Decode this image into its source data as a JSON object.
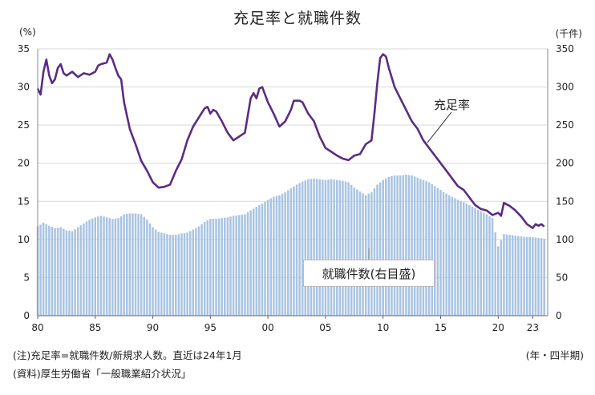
{
  "chart_data": {
    "type": "bar+line",
    "title": "充足率と就職件数",
    "left_axis": {
      "unit": "(%)",
      "ylim": [
        0,
        35
      ],
      "ticks": [
        "0",
        "5",
        "10",
        "15",
        "20",
        "25",
        "30",
        "35"
      ]
    },
    "right_axis": {
      "unit": "(千件)",
      "ylim": [
        0,
        350
      ],
      "ticks": [
        "0",
        "50",
        "100",
        "150",
        "200",
        "250",
        "300",
        "350"
      ]
    },
    "x_axis": {
      "unit": "(年・四半期)",
      "ticks": [
        {
          "year": 1980,
          "label": "80"
        },
        {
          "year": 1985,
          "label": "85"
        },
        {
          "year": 1990,
          "label": "90"
        },
        {
          "year": 1995,
          "label": "95"
        },
        {
          "year": 2000,
          "label": "00"
        },
        {
          "year": 2005,
          "label": "05"
        },
        {
          "year": 2010,
          "label": "10"
        },
        {
          "year": 2015,
          "label": "15"
        },
        {
          "year": 2020,
          "label": "20"
        },
        {
          "year": 2023,
          "label": "23"
        }
      ]
    },
    "series": [
      {
        "name": "就職件数(右目盛)",
        "kind": "bar",
        "axis": "right",
        "color": "#a9c4e2",
        "points": [
          [
            1980,
            117
          ],
          [
            1980.5,
            122
          ],
          [
            1981,
            118
          ],
          [
            1981.5,
            115
          ],
          [
            1982,
            116
          ],
          [
            1982.5,
            112
          ],
          [
            1983,
            111
          ],
          [
            1983.5,
            116
          ],
          [
            1984,
            121
          ],
          [
            1984.5,
            126
          ],
          [
            1985,
            129
          ],
          [
            1985.5,
            131
          ],
          [
            1986,
            129
          ],
          [
            1986.5,
            127
          ],
          [
            1987,
            128
          ],
          [
            1987.5,
            133
          ],
          [
            1988,
            134
          ],
          [
            1988.5,
            134
          ],
          [
            1989,
            133
          ],
          [
            1989.5,
            126
          ],
          [
            1990,
            116
          ],
          [
            1990.5,
            110
          ],
          [
            1991,
            108
          ],
          [
            1991.5,
            106
          ],
          [
            1992,
            106
          ],
          [
            1992.5,
            108
          ],
          [
            1993,
            109
          ],
          [
            1993.5,
            113
          ],
          [
            1994,
            117
          ],
          [
            1994.5,
            123
          ],
          [
            1995,
            127
          ],
          [
            1995.5,
            127
          ],
          [
            1996,
            128
          ],
          [
            1996.5,
            129
          ],
          [
            1997,
            131
          ],
          [
            1997.5,
            132
          ],
          [
            1998,
            133
          ],
          [
            1998.5,
            138
          ],
          [
            1999,
            143
          ],
          [
            1999.5,
            147
          ],
          [
            2000,
            152
          ],
          [
            2000.5,
            156
          ],
          [
            2001,
            158
          ],
          [
            2001.5,
            162
          ],
          [
            2002,
            167
          ],
          [
            2002.5,
            172
          ],
          [
            2003,
            176
          ],
          [
            2003.5,
            179
          ],
          [
            2004,
            180
          ],
          [
            2004.5,
            179
          ],
          [
            2005,
            178
          ],
          [
            2005.5,
            179
          ],
          [
            2006,
            178
          ],
          [
            2006.5,
            177
          ],
          [
            2007,
            175
          ],
          [
            2007.5,
            168
          ],
          [
            2008,
            163
          ],
          [
            2008.5,
            158
          ],
          [
            2009,
            162
          ],
          [
            2009.5,
            172
          ],
          [
            2010,
            178
          ],
          [
            2010.5,
            182
          ],
          [
            2011,
            184
          ],
          [
            2011.5,
            184
          ],
          [
            2012,
            185
          ],
          [
            2012.5,
            184
          ],
          [
            2013,
            181
          ],
          [
            2013.5,
            178
          ],
          [
            2014,
            175
          ],
          [
            2014.5,
            170
          ],
          [
            2015,
            165
          ],
          [
            2015.5,
            160
          ],
          [
            2016,
            156
          ],
          [
            2016.5,
            152
          ],
          [
            2017,
            149
          ],
          [
            2017.5,
            145
          ],
          [
            2018,
            141
          ],
          [
            2018.5,
            137
          ],
          [
            2019,
            133
          ],
          [
            2019.5,
            128
          ],
          [
            2020,
            91
          ],
          [
            2020.5,
            107
          ],
          [
            2021,
            106
          ],
          [
            2021.5,
            105
          ],
          [
            2022,
            104
          ],
          [
            2022.5,
            103
          ],
          [
            2023,
            103
          ],
          [
            2023.5,
            102
          ],
          [
            2024,
            101
          ]
        ]
      },
      {
        "name": "充足率",
        "kind": "line",
        "axis": "left",
        "color": "#5b2c83",
        "points": [
          [
            1980,
            29.8
          ],
          [
            1980.25,
            29
          ],
          [
            1980.5,
            32
          ],
          [
            1980.75,
            33.6
          ],
          [
            1981,
            31.5
          ],
          [
            1981.25,
            30.5
          ],
          [
            1981.5,
            31
          ],
          [
            1981.75,
            32.5
          ],
          [
            1982,
            33
          ],
          [
            1982.25,
            31.8
          ],
          [
            1982.5,
            31.5
          ],
          [
            1983,
            32
          ],
          [
            1983.5,
            31.3
          ],
          [
            1984,
            31.8
          ],
          [
            1984.5,
            31.6
          ],
          [
            1985,
            32
          ],
          [
            1985.25,
            32.8
          ],
          [
            1985.5,
            33
          ],
          [
            1986,
            33.2
          ],
          [
            1986.25,
            34.3
          ],
          [
            1986.5,
            33.6
          ],
          [
            1986.75,
            32.5
          ],
          [
            1987,
            31.5
          ],
          [
            1987.25,
            31
          ],
          [
            1987.5,
            28
          ],
          [
            1988,
            24.5
          ],
          [
            1988.25,
            23.5
          ],
          [
            1988.5,
            22.5
          ],
          [
            1989,
            20.3
          ],
          [
            1989.5,
            19
          ],
          [
            1990,
            17.5
          ],
          [
            1990.5,
            16.8
          ],
          [
            1991,
            16.9
          ],
          [
            1991.5,
            17.2
          ],
          [
            1992,
            19
          ],
          [
            1992.5,
            20.5
          ],
          [
            1993,
            23
          ],
          [
            1993.5,
            24.8
          ],
          [
            1994,
            26
          ],
          [
            1994.5,
            27.2
          ],
          [
            1994.75,
            27.4
          ],
          [
            1995,
            26.5
          ],
          [
            1995.25,
            27
          ],
          [
            1995.5,
            26.8
          ],
          [
            1996,
            25.5
          ],
          [
            1996.5,
            24
          ],
          [
            1997,
            23
          ],
          [
            1997.5,
            23.5
          ],
          [
            1998,
            24
          ],
          [
            1998.5,
            28.5
          ],
          [
            1998.75,
            29.2
          ],
          [
            1999,
            28.5
          ],
          [
            1999.25,
            29.8
          ],
          [
            1999.5,
            30
          ],
          [
            2000,
            28
          ],
          [
            2000.5,
            26.5
          ],
          [
            2001,
            24.8
          ],
          [
            2001.5,
            25.5
          ],
          [
            2002,
            27
          ],
          [
            2002.25,
            28.2
          ],
          [
            2002.75,
            28.2
          ],
          [
            2003,
            28
          ],
          [
            2003.5,
            26.5
          ],
          [
            2004,
            25.5
          ],
          [
            2004.5,
            23.5
          ],
          [
            2005,
            22
          ],
          [
            2005.5,
            21.5
          ],
          [
            2006,
            21
          ],
          [
            2006.5,
            20.6
          ],
          [
            2007,
            20.4
          ],
          [
            2007.5,
            21
          ],
          [
            2008,
            21.2
          ],
          [
            2008.5,
            22.5
          ],
          [
            2009,
            23
          ],
          [
            2009.25,
            26.5
          ],
          [
            2009.5,
            30.5
          ],
          [
            2009.75,
            33.8
          ],
          [
            2010,
            34.3
          ],
          [
            2010.25,
            34
          ],
          [
            2010.5,
            32.5
          ],
          [
            2011,
            30
          ],
          [
            2011.5,
            28.5
          ],
          [
            2012,
            27
          ],
          [
            2012.5,
            25.5
          ],
          [
            2013,
            24.5
          ],
          [
            2013.5,
            23
          ],
          [
            2014,
            22
          ],
          [
            2014.5,
            21
          ],
          [
            2015,
            20
          ],
          [
            2015.5,
            19
          ],
          [
            2016,
            18
          ],
          [
            2016.5,
            17
          ],
          [
            2017,
            16.5
          ],
          [
            2017.5,
            15.5
          ],
          [
            2018,
            14.5
          ],
          [
            2018.5,
            14
          ],
          [
            2019,
            13.8
          ],
          [
            2019.5,
            13.2
          ],
          [
            2020,
            13.5
          ],
          [
            2020.25,
            13.1
          ],
          [
            2020.5,
            14.8
          ],
          [
            2021,
            14.4
          ],
          [
            2021.5,
            13.8
          ],
          [
            2022,
            13
          ],
          [
            2022.5,
            12
          ],
          [
            2023,
            11.5
          ],
          [
            2023.25,
            12
          ],
          [
            2023.5,
            11.8
          ],
          [
            2023.75,
            12
          ],
          [
            2024,
            11.7
          ]
        ]
      }
    ]
  },
  "labels": {
    "bar_series_label": "就職件数(右目盛)",
    "line_series_label": "充足率"
  },
  "notes": [
    "(注)充足率=就職件数/新規求人数。直近は24年1月",
    "(資料)厚生労働省「一般職業紹介状況」"
  ]
}
